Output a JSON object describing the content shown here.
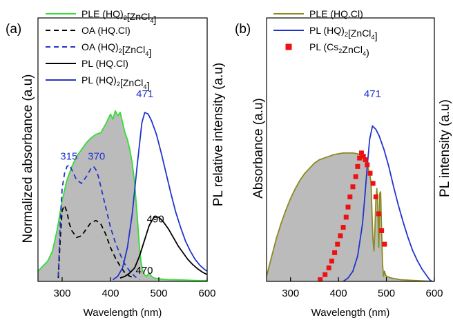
{
  "chart_data": [
    {
      "panel_label": "(a)",
      "type": "line",
      "xlabel": "Wavelength (nm)",
      "ylabel_left": "Normalized absorbance (a.u)",
      "ylabel_right": "PL relative intensity (a.u)",
      "xlim": [
        250,
        600
      ],
      "xticks": [
        300,
        400,
        500,
        600
      ],
      "ylim": [
        0,
        1
      ],
      "legend_position": "top-left",
      "legend": [
        {
          "text": "PLE (HQ)",
          "sub": "2",
          "rest": "[ZnCl",
          "sub2": "4",
          "end": "]",
          "color": "#33dd33",
          "dash": false
        },
        {
          "text": "OA (HQ.Cl)",
          "color": "#000000",
          "dash": true
        },
        {
          "text": "OA (HQ)",
          "sub": "2",
          "rest": "[ZnCl",
          "sub2": "4",
          "end": "]",
          "color": "#2233cc",
          "dash": true
        },
        {
          "text": "PL (HQ.Cl)",
          "color": "#000000",
          "dash": false
        },
        {
          "text": "PL (HQ)",
          "sub": "2",
          "rest": "[ZnCl",
          "sub2": "4",
          "end": "]",
          "color": "#2233cc",
          "dash": false
        }
      ],
      "annotations": [
        {
          "text": "315",
          "x": 314,
          "y": 0.72,
          "color": "#2233cc"
        },
        {
          "text": "370",
          "x": 371,
          "y": 0.72,
          "color": "#2233cc"
        },
        {
          "text": "471",
          "x": 471,
          "y": 1.09,
          "color": "#2233cc"
        },
        {
          "text": "490",
          "x": 493,
          "y": 0.35,
          "color": "#000000"
        },
        {
          "text": "470",
          "x": 470,
          "y": 0.045,
          "color": "#000000"
        }
      ],
      "series": [
        {
          "name": "PLE (HQ)2[ZnCl4]",
          "color": "#33dd33",
          "fill": "#bbbbbb",
          "dash": false,
          "x": [
            250,
            260,
            270,
            280,
            290,
            300,
            310,
            320,
            330,
            340,
            350,
            360,
            370,
            380,
            390,
            400,
            405,
            410,
            415,
            420,
            425,
            430,
            435,
            440,
            445,
            450,
            455,
            458,
            460,
            463,
            466,
            470,
            475,
            480,
            485,
            490,
            500,
            520,
            550,
            580,
            600
          ],
          "y": [
            0.06,
            0.09,
            0.12,
            0.18,
            0.31,
            0.48,
            0.6,
            0.68,
            0.74,
            0.78,
            0.82,
            0.85,
            0.87,
            0.88,
            0.93,
            0.99,
            0.96,
            1.01,
            0.98,
            1.0,
            0.94,
            0.88,
            0.84,
            0.78,
            0.7,
            0.58,
            0.4,
            0.28,
            0.2,
            0.12,
            0.07,
            0.04,
            0.03,
            0.05,
            0.03,
            0.02,
            0.015,
            0.01,
            0.008,
            0.005,
            0.005
          ]
        },
        {
          "name": "OA (HQ.Cl)",
          "color": "#000000",
          "dash": true,
          "x": [
            292,
            296,
            300,
            305,
            310,
            315,
            320,
            330,
            340,
            350,
            360,
            370,
            380,
            390,
            400,
            410,
            420,
            430,
            440,
            450
          ],
          "y": [
            0.02,
            0.25,
            0.42,
            0.45,
            0.41,
            0.34,
            0.3,
            0.26,
            0.27,
            0.31,
            0.35,
            0.36,
            0.34,
            0.28,
            0.2,
            0.14,
            0.09,
            0.05,
            0.03,
            0.02
          ]
        },
        {
          "name": "OA (HQ)2[ZnCl4]",
          "color": "#2233cc",
          "dash": true,
          "x": [
            292,
            296,
            300,
            305,
            310,
            315,
            320,
            330,
            340,
            350,
            360,
            365,
            370,
            375,
            380,
            390,
            400,
            410,
            420,
            430,
            440,
            450,
            460
          ],
          "y": [
            0.03,
            0.35,
            0.55,
            0.64,
            0.68,
            0.69,
            0.66,
            0.6,
            0.58,
            0.62,
            0.67,
            0.68,
            0.66,
            0.62,
            0.56,
            0.44,
            0.32,
            0.23,
            0.16,
            0.1,
            0.06,
            0.03,
            0.01
          ]
        },
        {
          "name": "PL (HQ.Cl)",
          "color": "#000000",
          "dash": false,
          "x": [
            420,
            430,
            440,
            450,
            460,
            470,
            480,
            490,
            500,
            510,
            520,
            530,
            540,
            550,
            560,
            570,
            580,
            590,
            600
          ],
          "y": [
            0.02,
            0.03,
            0.05,
            0.08,
            0.15,
            0.24,
            0.33,
            0.38,
            0.38,
            0.35,
            0.31,
            0.26,
            0.21,
            0.17,
            0.13,
            0.1,
            0.075,
            0.055,
            0.04
          ]
        },
        {
          "name": "PL (HQ)2[ZnCl4]",
          "color": "#2233cc",
          "dash": false,
          "x": [
            405,
            415,
            425,
            435,
            445,
            455,
            465,
            471,
            478,
            485,
            495,
            505,
            515,
            525,
            535,
            545,
            555,
            565,
            575,
            585,
            595,
            600
          ],
          "y": [
            0.01,
            0.03,
            0.08,
            0.2,
            0.4,
            0.68,
            0.94,
            1.0,
            0.99,
            0.95,
            0.87,
            0.76,
            0.64,
            0.52,
            0.41,
            0.32,
            0.24,
            0.18,
            0.13,
            0.095,
            0.07,
            0.06
          ]
        }
      ]
    },
    {
      "panel_label": "(b)",
      "type": "line",
      "xlabel": "Wavelength (nm)",
      "ylabel_left": "Absorbance (a.u)",
      "ylabel_right": "PL intensity (a.u)",
      "xlim": [
        250,
        600
      ],
      "xticks": [
        300,
        400,
        500,
        600
      ],
      "ylim": [
        0,
        1
      ],
      "legend_position": "top-left",
      "legend": [
        {
          "text": "PLE (HQ.Cl)",
          "color": "#8a8a20",
          "marker": "line"
        },
        {
          "text": "PL (HQ)",
          "sub": "2",
          "rest": "[ZnCl",
          "sub2": "4",
          "end": "]",
          "color": "#2233cc",
          "marker": "line"
        },
        {
          "text": "PL (Cs",
          "sub": "2",
          "rest": "ZnCl",
          "sub2": "4",
          "end": ")",
          "color": "#ee1111",
          "marker": "square"
        }
      ],
      "annotations": [
        {
          "text": "471",
          "x": 471,
          "y": 1.09,
          "color": "#2233cc"
        }
      ],
      "series": [
        {
          "name": "PLE (HQ.Cl)",
          "color": "#8a8a20",
          "fill": "#bbbbbb",
          "dash": false,
          "x": [
            250,
            260,
            270,
            280,
            290,
            300,
            310,
            320,
            330,
            340,
            350,
            360,
            370,
            380,
            390,
            400,
            410,
            420,
            430,
            440,
            445,
            450,
            455,
            460,
            465,
            468,
            470,
            472,
            474,
            476,
            478,
            480,
            482,
            484,
            486,
            488,
            490,
            492,
            494,
            496,
            498,
            500,
            510,
            530,
            560,
            600
          ],
          "y": [
            0.03,
            0.14,
            0.25,
            0.34,
            0.42,
            0.49,
            0.55,
            0.6,
            0.64,
            0.67,
            0.7,
            0.72,
            0.73,
            0.74,
            0.75,
            0.755,
            0.76,
            0.76,
            0.76,
            0.755,
            0.75,
            0.74,
            0.72,
            0.69,
            0.64,
            0.58,
            0.4,
            0.25,
            0.18,
            0.3,
            0.48,
            0.55,
            0.44,
            0.2,
            0.52,
            0.53,
            0.3,
            0.1,
            0.03,
            0.06,
            0.04,
            0.03,
            0.02,
            0.01,
            0.005,
            0.0
          ]
        },
        {
          "name": "PL (HQ)2[ZnCl4]",
          "color": "#2233cc",
          "dash": false,
          "x": [
            410,
            420,
            430,
            440,
            450,
            455,
            460,
            465,
            471,
            478,
            485,
            495,
            505,
            515,
            525,
            535,
            545,
            555,
            565,
            575,
            585,
            590,
            595
          ],
          "y": [
            0.0,
            0.02,
            0.06,
            0.15,
            0.34,
            0.5,
            0.68,
            0.84,
            0.92,
            0.9,
            0.86,
            0.78,
            0.68,
            0.56,
            0.45,
            0.35,
            0.26,
            0.18,
            0.12,
            0.07,
            0.03,
            0.01,
            0.0
          ]
        },
        {
          "name": "PL (Cs2ZnCl4)",
          "color": "#ee1111",
          "marker": "square",
          "x": [
            362,
            372,
            380,
            386,
            392,
            398,
            404,
            410,
            416,
            420,
            424,
            430,
            436,
            440,
            444,
            448,
            452,
            456,
            460,
            466,
            472,
            478,
            484,
            490,
            496
          ],
          "y": [
            0.01,
            0.04,
            0.08,
            0.12,
            0.17,
            0.22,
            0.27,
            0.32,
            0.38,
            0.44,
            0.5,
            0.56,
            0.62,
            0.68,
            0.73,
            0.76,
            0.74,
            0.72,
            0.69,
            0.64,
            0.58,
            0.5,
            0.4,
            0.3,
            0.22
          ]
        }
      ]
    }
  ]
}
